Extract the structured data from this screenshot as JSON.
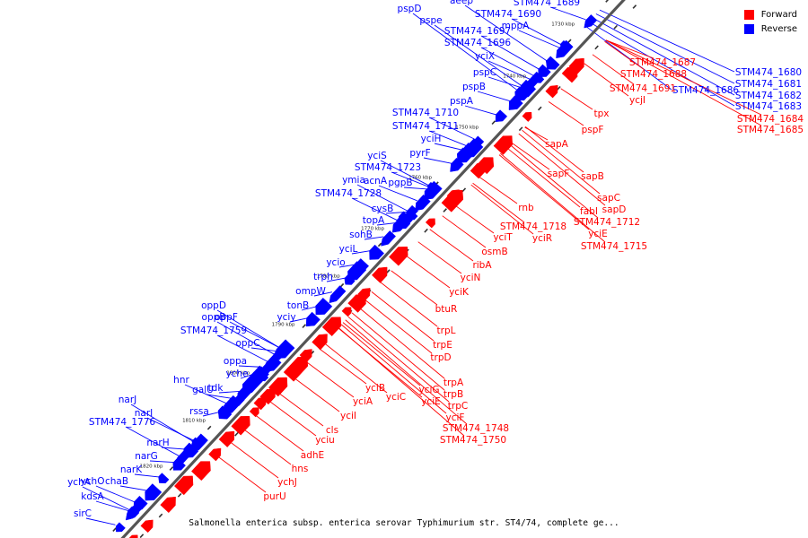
{
  "legend": {
    "forward_label": "Forward",
    "reverse_label": "Reverse",
    "forward_color": "#ff0000",
    "reverse_color": "#0000ff"
  },
  "caption": "Salmonella enterica subsp. enterica serovar Typhimurium str. ST4/74, complete ge...",
  "map": {
    "backbone_color": "#555555",
    "kbp_marks": [
      "1730 kbp",
      "1740 kbp",
      "1750 kbp",
      "1760 kbp",
      "1770 kbp",
      "1780 kbp",
      "1790 kbp",
      "1800 kbp",
      "1810 kbp",
      "1820 kbp"
    ],
    "reverse_genes": [
      "sirC",
      "kdsA",
      "ychO",
      "chaB",
      "ychA",
      "narK",
      "narG",
      "narH",
      "STM474_1776",
      "narI",
      "narJ",
      "rssa",
      "galU",
      "tdk",
      "hnr",
      "yche",
      "oppa",
      "oppC",
      "STM474_1759",
      "oppF",
      "oppB",
      "oppD",
      "yciy",
      "tonB",
      "ompW",
      "trph",
      "ycio",
      "yciL",
      "sohB",
      "topA",
      "cysB",
      "STM474_1728",
      "ymia",
      "acnA",
      "pgpB",
      "STM474_1723",
      "yciS",
      "pyrF",
      "yciH",
      "STM474_1711",
      "STM474_1710",
      "pspA",
      "pspB",
      "pspC",
      "yciX",
      "STM474_1696",
      "STM474_1697",
      "pspe",
      "pspD",
      "mppA",
      "STM474_1690",
      "aeep",
      "STM474_1689"
    ],
    "reverse_far": [
      "STM474_1680",
      "STM474_1681",
      "STM474_1682",
      "STM474_1683",
      "STM474_1686"
    ],
    "forward_genes": [
      "purU",
      "ychJ",
      "hns",
      "adhE",
      "yciu",
      "cls",
      "yciI",
      "yciA",
      "yciB",
      "yciC",
      "yciE",
      "yciG",
      "trpA",
      "trpB",
      "trpC",
      "yciF",
      "STM474_1748",
      "STM474_1750",
      "trpD",
      "trpE",
      "trpL",
      "btuR",
      "yciK",
      "yciN",
      "ribA",
      "osmB",
      "yciT",
      "yciR",
      "rnb",
      "STM474_1718",
      "fabI",
      "yciE",
      "STM474_1712",
      "sapD",
      "STM474_1715",
      "sapC",
      "sapB",
      "sapF",
      "sapA",
      "pspF",
      "tpx",
      "ycjI",
      "STM474_1691",
      "STM474_1688",
      "STM474_1687",
      "STM474_1684",
      "STM474_1685"
    ]
  }
}
